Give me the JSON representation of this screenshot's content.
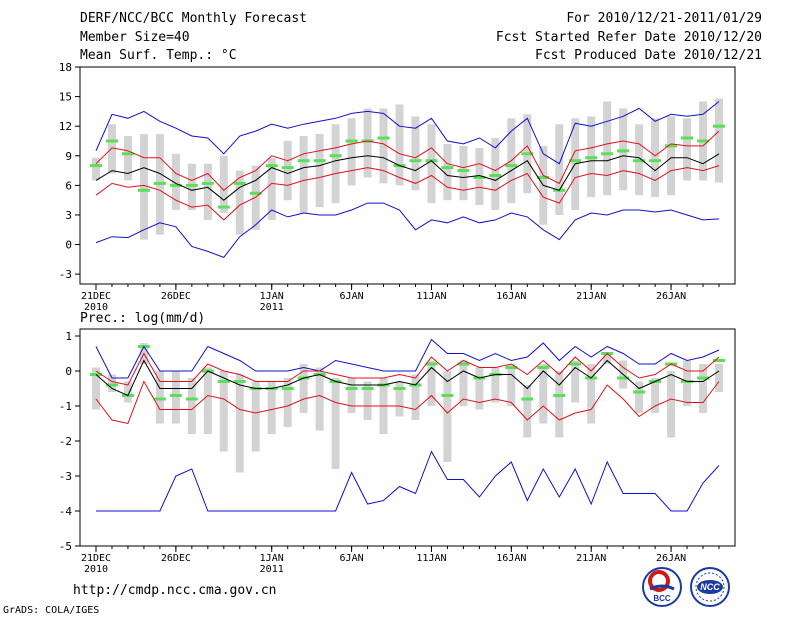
{
  "header": {
    "title": "DERF/NCC/BCC Monthly Forecast",
    "member_size": "Member Size=40",
    "period": "For 2010/12/21-2011/01/29",
    "refer_date": "Fcst Started Refer Date 2010/12/20",
    "produced_date": "Fcst Produced Date 2010/12/21"
  },
  "footer": {
    "url": "http://cmdp.ncc.cma.gov.cn",
    "grads": "GrADS: COLA/IGES",
    "logo_bcc": "BCC",
    "logo_ncc": "NCC"
  },
  "colors": {
    "box": "#d3d3d3",
    "median": "#58e058",
    "mean": "#000000",
    "spread": "#e0101e",
    "extreme": "#1010cc"
  },
  "chart_data": [
    {
      "type": "line",
      "title": "Mean Surf. Temp.: °C",
      "ylim": [
        -4,
        18
      ],
      "yticks": [
        "18",
        "15",
        "12",
        "9",
        "6",
        "3",
        "0",
        "-3"
      ],
      "ytick_values": [
        18,
        15,
        12,
        9,
        6,
        3,
        0,
        -3
      ],
      "x": [
        1,
        2,
        3,
        4,
        5,
        6,
        7,
        8,
        9,
        10,
        11,
        12,
        13,
        14,
        15,
        16,
        17,
        18,
        19,
        20,
        21,
        22,
        23,
        24,
        25,
        26,
        27,
        28,
        29,
        30,
        31,
        32,
        33,
        34,
        35,
        36,
        37,
        38,
        39,
        40
      ],
      "xtick_labels": [
        {
          "day": 1,
          "label": "21DEC",
          "sub": "2010"
        },
        {
          "day": 6,
          "label": "26DEC",
          "sub": ""
        },
        {
          "day": 12,
          "label": "1JAN",
          "sub": "2011"
        },
        {
          "day": 17,
          "label": "6JAN",
          "sub": ""
        },
        {
          "day": 22,
          "label": "11JAN",
          "sub": ""
        },
        {
          "day": 27,
          "label": "16JAN",
          "sub": ""
        },
        {
          "day": 32,
          "label": "21JAN",
          "sub": ""
        },
        {
          "day": 37,
          "label": "26JAN",
          "sub": ""
        }
      ],
      "box_low": [
        6.5,
        7.2,
        6.5,
        0.5,
        1.0,
        3.5,
        3.5,
        2.5,
        3.2,
        1.0,
        1.5,
        2.5,
        4.5,
        3.2,
        3.8,
        4.2,
        6.0,
        6.8,
        6.2,
        6.0,
        5.5,
        4.2,
        4.5,
        4.5,
        4.0,
        3.5,
        4.2,
        5.2,
        2.0,
        3.0,
        3.5,
        4.8,
        5.0,
        5.5,
        5.0,
        4.8,
        5.0,
        6.5,
        6.5,
        6.3
      ],
      "box_high": [
        8.8,
        12.2,
        11.0,
        11.2,
        11.2,
        9.2,
        8.2,
        8.2,
        9.0,
        7.5,
        8.0,
        8.8,
        10.5,
        11.0,
        11.2,
        12.2,
        12.8,
        13.8,
        13.8,
        14.2,
        13.0,
        12.2,
        10.2,
        10.0,
        9.8,
        10.8,
        12.8,
        13.2,
        10.0,
        12.2,
        12.8,
        13.0,
        14.5,
        13.8,
        12.2,
        12.8,
        13.0,
        12.8,
        14.5,
        14.8
      ],
      "median": [
        8.0,
        10.5,
        9.2,
        5.5,
        6.2,
        6.0,
        6.0,
        6.2,
        3.8,
        6.2,
        5.2,
        8.0,
        7.8,
        8.5,
        8.5,
        9.0,
        10.5,
        10.5,
        10.8,
        8.0,
        8.5,
        8.5,
        7.8,
        7.5,
        6.8,
        7.0,
        8.0,
        9.2,
        6.8,
        5.5,
        8.5,
        8.8,
        9.2,
        9.5,
        8.5,
        8.5,
        10.0,
        10.8,
        10.5,
        12.0
      ],
      "series": [
        {
          "name": "max",
          "role": "extreme",
          "values": [
            9.5,
            13.2,
            12.8,
            13.5,
            12.5,
            11.8,
            11.0,
            10.8,
            9.2,
            11.0,
            11.5,
            12.2,
            11.8,
            12.2,
            12.5,
            12.8,
            13.3,
            13.5,
            13.3,
            12.0,
            11.8,
            12.8,
            10.5,
            10.2,
            10.8,
            9.8,
            11.5,
            12.8,
            9.2,
            8.2,
            12.3,
            12.0,
            12.5,
            13.0,
            13.8,
            12.5,
            13.2,
            13.0,
            13.2,
            14.5
          ]
        },
        {
          "name": "upper",
          "role": "spread",
          "values": [
            8.2,
            9.8,
            9.5,
            8.8,
            8.8,
            7.2,
            6.5,
            7.2,
            5.5,
            6.8,
            7.5,
            9.0,
            8.5,
            9.2,
            9.5,
            9.8,
            10.2,
            10.5,
            10.2,
            9.2,
            8.8,
            9.8,
            8.2,
            7.8,
            8.2,
            7.5,
            8.5,
            10.0,
            7.0,
            6.2,
            9.5,
            9.8,
            10.2,
            10.5,
            10.2,
            9.0,
            10.2,
            10.0,
            10.0,
            11.5
          ]
        },
        {
          "name": "mean",
          "role": "mean",
          "values": [
            6.5,
            7.5,
            7.2,
            7.8,
            7.2,
            6.2,
            5.5,
            5.8,
            4.5,
            5.8,
            6.5,
            7.8,
            7.2,
            7.8,
            8.0,
            8.5,
            8.8,
            9.0,
            8.8,
            8.0,
            7.5,
            8.5,
            7.0,
            6.8,
            7.0,
            6.5,
            7.5,
            8.5,
            6.0,
            5.5,
            8.2,
            8.5,
            8.5,
            9.0,
            8.8,
            7.5,
            8.8,
            8.8,
            8.2,
            9.2
          ]
        },
        {
          "name": "lower",
          "role": "spread",
          "values": [
            5.0,
            6.2,
            5.8,
            6.0,
            5.5,
            4.5,
            3.8,
            4.0,
            2.5,
            4.0,
            4.8,
            6.2,
            6.0,
            6.5,
            6.8,
            7.2,
            7.5,
            7.8,
            7.5,
            6.8,
            6.2,
            7.0,
            5.8,
            5.5,
            5.8,
            5.5,
            6.5,
            7.2,
            4.8,
            4.2,
            6.8,
            7.2,
            7.0,
            7.5,
            7.2,
            6.5,
            7.5,
            7.8,
            7.5,
            8.0
          ]
        },
        {
          "name": "min",
          "role": "extreme",
          "values": [
            0.2,
            0.8,
            0.7,
            1.5,
            2.2,
            1.8,
            -0.2,
            -0.7,
            -1.3,
            0.8,
            2.0,
            3.5,
            2.8,
            3.2,
            3.0,
            3.0,
            3.5,
            4.2,
            4.2,
            3.5,
            1.5,
            2.5,
            2.2,
            2.8,
            2.2,
            2.5,
            3.2,
            2.8,
            1.5,
            0.5,
            2.5,
            3.2,
            3.0,
            3.5,
            3.5,
            3.3,
            3.5,
            3.0,
            2.5,
            2.6
          ]
        }
      ]
    },
    {
      "type": "line",
      "title": "Prec.: log(mm/d)",
      "ylim": [
        -5,
        1.2
      ],
      "yticks": [
        "1",
        "0",
        "-1",
        "-2",
        "-3",
        "-4",
        "-5"
      ],
      "ytick_values": [
        1,
        0,
        -1,
        -2,
        -3,
        -4,
        -5
      ],
      "x": [
        1,
        2,
        3,
        4,
        5,
        6,
        7,
        8,
        9,
        10,
        11,
        12,
        13,
        14,
        15,
        16,
        17,
        18,
        19,
        20,
        21,
        22,
        23,
        24,
        25,
        26,
        27,
        28,
        29,
        30,
        31,
        32,
        33,
        34,
        35,
        36,
        37,
        38,
        39,
        40
      ],
      "xtick_labels": [
        {
          "day": 1,
          "label": "21DEC",
          "sub": "2010"
        },
        {
          "day": 6,
          "label": "26DEC",
          "sub": ""
        },
        {
          "day": 12,
          "label": "1JAN",
          "sub": "2011"
        },
        {
          "day": 17,
          "label": "6JAN",
          "sub": ""
        },
        {
          "day": 22,
          "label": "11JAN",
          "sub": ""
        },
        {
          "day": 27,
          "label": "16JAN",
          "sub": ""
        },
        {
          "day": 32,
          "label": "21JAN",
          "sub": ""
        },
        {
          "day": 37,
          "label": "26JAN",
          "sub": ""
        }
      ],
      "box_low": [
        -1.1,
        -0.6,
        -0.9,
        0.2,
        -1.5,
        -1.5,
        -1.8,
        -1.8,
        -2.3,
        -2.9,
        -2.3,
        -1.8,
        -1.6,
        -1.2,
        -1.7,
        -2.8,
        -1.2,
        -1.4,
        -1.8,
        -1.3,
        -1.4,
        -1.0,
        -2.6,
        -1.0,
        -1.1,
        -0.9,
        -1.0,
        -1.9,
        -1.5,
        -1.9,
        -0.9,
        -1.5,
        0.2,
        -0.5,
        -1.2,
        -1.2,
        -1.9,
        -1.0,
        -1.2,
        -0.6
      ],
      "box_high": [
        0.1,
        -0.1,
        -0.3,
        0.8,
        0.0,
        0.0,
        -0.2,
        0.1,
        0.0,
        -0.1,
        -0.3,
        -0.3,
        -0.2,
        0.2,
        0.1,
        -0.2,
        -0.2,
        -0.3,
        -0.2,
        -0.3,
        -0.1,
        0.3,
        0.0,
        0.3,
        0.1,
        0.1,
        0.2,
        -0.4,
        0.2,
        0.0,
        0.3,
        0.2,
        0.5,
        0.3,
        -0.3,
        -0.2,
        0.0,
        0.3,
        0.2,
        0.2
      ],
      "median": [
        -0.1,
        -0.4,
        -0.7,
        0.7,
        -0.8,
        -0.7,
        -0.8,
        0.0,
        -0.3,
        -0.3,
        -0.5,
        -0.5,
        -0.5,
        -0.2,
        -0.1,
        -0.3,
        -0.5,
        -0.5,
        -0.4,
        -0.5,
        -0.4,
        0.2,
        -0.7,
        0.2,
        -0.2,
        -0.1,
        0.1,
        -0.8,
        0.1,
        -0.7,
        0.2,
        -0.2,
        0.5,
        -0.2,
        -0.6,
        -0.3,
        0.2,
        -0.3,
        -0.2,
        0.3
      ],
      "series": [
        {
          "name": "max",
          "role": "extreme",
          "values": [
            0.7,
            -0.2,
            -0.2,
            0.7,
            0.0,
            0.0,
            0.0,
            0.7,
            0.5,
            0.3,
            0.0,
            0.0,
            0.0,
            0.1,
            0.0,
            0.3,
            0.2,
            0.1,
            0.0,
            0.0,
            0.0,
            0.9,
            0.5,
            0.5,
            0.3,
            0.5,
            0.3,
            0.4,
            0.8,
            0.3,
            0.7,
            0.4,
            0.7,
            0.5,
            0.2,
            0.2,
            0.5,
            0.3,
            0.4,
            0.6
          ]
        },
        {
          "name": "upper",
          "role": "spread",
          "values": [
            0.0,
            -0.3,
            -0.4,
            0.5,
            -0.3,
            -0.3,
            -0.3,
            0.2,
            0.0,
            -0.1,
            -0.3,
            -0.3,
            -0.3,
            0.0,
            0.0,
            -0.1,
            -0.2,
            -0.2,
            -0.2,
            -0.1,
            -0.2,
            0.4,
            0.0,
            0.3,
            0.1,
            0.1,
            0.2,
            -0.1,
            0.3,
            -0.1,
            0.4,
            0.0,
            0.5,
            0.1,
            -0.2,
            -0.1,
            0.2,
            0.0,
            0.0,
            0.4
          ]
        },
        {
          "name": "mean",
          "role": "mean",
          "values": [
            -0.1,
            -0.5,
            -0.7,
            0.3,
            -0.5,
            -0.5,
            -0.5,
            0.0,
            -0.2,
            -0.4,
            -0.5,
            -0.5,
            -0.4,
            -0.2,
            -0.1,
            -0.3,
            -0.4,
            -0.4,
            -0.4,
            -0.3,
            -0.4,
            0.1,
            -0.3,
            0.0,
            -0.2,
            -0.1,
            -0.1,
            -0.5,
            0.0,
            -0.4,
            0.1,
            -0.2,
            0.3,
            -0.1,
            -0.5,
            -0.3,
            -0.1,
            -0.3,
            -0.3,
            0.0
          ]
        },
        {
          "name": "lower",
          "role": "spread",
          "values": [
            -0.8,
            -1.4,
            -1.5,
            -0.3,
            -1.1,
            -1.1,
            -1.1,
            -0.7,
            -0.8,
            -1.1,
            -1.2,
            -1.1,
            -1.0,
            -0.8,
            -0.7,
            -0.9,
            -1.0,
            -1.0,
            -1.0,
            -1.0,
            -1.1,
            -0.7,
            -1.2,
            -0.8,
            -0.9,
            -0.8,
            -0.9,
            -1.4,
            -1.0,
            -1.4,
            -1.2,
            -1.1,
            -0.4,
            -0.8,
            -1.3,
            -1.0,
            -0.8,
            -0.9,
            -0.9,
            -0.3
          ]
        },
        {
          "name": "min",
          "role": "extreme",
          "values": [
            -4.0,
            -4.0,
            -4.0,
            -4.0,
            -4.0,
            -3.0,
            -2.8,
            -4.0,
            -4.0,
            -4.0,
            -4.0,
            -4.0,
            -4.0,
            -4.0,
            -4.0,
            -4.0,
            -2.9,
            -3.8,
            -3.7,
            -3.3,
            -3.5,
            -2.3,
            -3.1,
            -3.1,
            -3.6,
            -3.0,
            -2.6,
            -3.7,
            -2.8,
            -3.6,
            -2.8,
            -3.8,
            -2.6,
            -3.5,
            -3.5,
            -3.5,
            -4.0,
            -4.0,
            -3.2,
            -2.7
          ]
        }
      ]
    }
  ]
}
